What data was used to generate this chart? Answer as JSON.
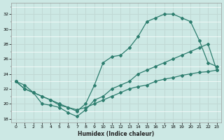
{
  "title": "",
  "xlabel": "Humidex (Indice chaleur)",
  "background_color": "#cce8e4",
  "grid_color": "#b8d8d4",
  "line_color": "#2d7d6e",
  "xlim": [
    -0.5,
    23.5
  ],
  "ylim": [
    17.5,
    33.5
  ],
  "xticks": [
    0,
    1,
    2,
    3,
    4,
    5,
    6,
    7,
    8,
    9,
    10,
    11,
    12,
    13,
    14,
    15,
    16,
    17,
    18,
    19,
    20,
    21,
    22,
    23
  ],
  "yticks": [
    18,
    20,
    22,
    24,
    26,
    28,
    30,
    32
  ],
  "line1_x": [
    0,
    1,
    2,
    3,
    4,
    5,
    6,
    7,
    8,
    9,
    10,
    11,
    12,
    13,
    14,
    15,
    16,
    17,
    18,
    19,
    20,
    21,
    22,
    23
  ],
  "line1_y": [
    23.0,
    22.0,
    21.5,
    21.0,
    20.5,
    20.0,
    19.5,
    19.2,
    19.5,
    20.0,
    20.5,
    21.0,
    21.5,
    22.0,
    22.3,
    22.5,
    23.0,
    23.3,
    23.5,
    23.8,
    24.0,
    24.2,
    24.3,
    24.5
  ],
  "line2_x": [
    0,
    1,
    2,
    3,
    4,
    5,
    6,
    7,
    8,
    9,
    10,
    11,
    12,
    13,
    14,
    15,
    16,
    17,
    18,
    19,
    20,
    21,
    22,
    23
  ],
  "line2_y": [
    23.0,
    22.5,
    21.5,
    21.0,
    20.5,
    19.8,
    19.5,
    19.0,
    20.0,
    22.5,
    25.5,
    26.3,
    26.5,
    27.5,
    29.0,
    31.0,
    31.5,
    32.0,
    32.0,
    31.5,
    31.0,
    28.5,
    25.5,
    25.0
  ],
  "line3_x": [
    0,
    1,
    2,
    3,
    4,
    5,
    6,
    7,
    8,
    9,
    10,
    11,
    12,
    13,
    14,
    15,
    16,
    17,
    18,
    19,
    20,
    21,
    22,
    23
  ],
  "line3_y": [
    23.0,
    22.0,
    21.5,
    20.0,
    19.8,
    19.5,
    18.8,
    18.3,
    19.2,
    20.5,
    21.0,
    22.0,
    22.5,
    23.0,
    24.0,
    24.5,
    25.0,
    25.5,
    26.0,
    26.5,
    27.0,
    27.5,
    28.0,
    24.5
  ]
}
